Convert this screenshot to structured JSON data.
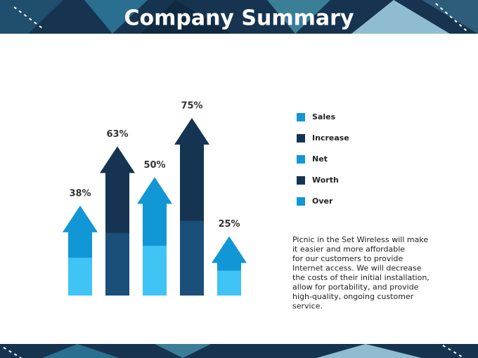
{
  "chart_data": {
    "type": "arrow-bar",
    "title": "Company Summary",
    "categories": [
      "Sales",
      "Increase",
      "Net",
      "Worth",
      "Over"
    ],
    "values": [
      38,
      63,
      50,
      75,
      25
    ],
    "value_labels": [
      "38%",
      "63%",
      "50%",
      "75%",
      "25%"
    ],
    "colors": [
      "#1196d6",
      "#153452",
      "#1196d6",
      "#153452",
      "#1196d6"
    ],
    "base_colors": [
      "#3fc4f5",
      "#1a4f7a",
      "#3fc4f5",
      "#1a4f7a",
      "#3fc4f5"
    ]
  },
  "description": [
    "Picnic in the Set Wireless will make",
    "it easier and more affordable",
    "for our customers to provide",
    "Internet access. We will decrease",
    "the costs of their initial installation,",
    "allow for portability, and provide",
    "high-quality, ongoing customer",
    "service."
  ]
}
